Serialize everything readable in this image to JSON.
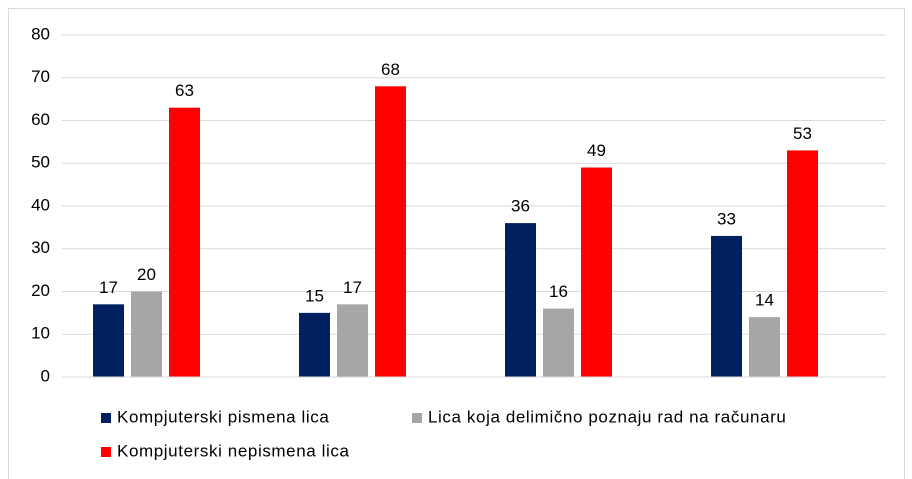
{
  "chart_data": {
    "type": "bar",
    "categories": [
      null,
      null,
      null,
      null
    ],
    "series": [
      {
        "name": "Kompjuterski pismena lica",
        "color": "#002060",
        "values": [
          17,
          15,
          36,
          33
        ]
      },
      {
        "name": "Lica koja delimično poznaju rad na računaru",
        "color": "#a6a6a6",
        "values": [
          20,
          17,
          16,
          14
        ]
      },
      {
        "name": "Kompjuterski nepismena lica",
        "color": "#ff0000",
        "values": [
          63,
          68,
          49,
          53
        ]
      }
    ],
    "ylim": [
      0,
      80
    ],
    "yticks": [
      0,
      10,
      20,
      30,
      40,
      50,
      60,
      70,
      80
    ],
    "grid": true,
    "legend": "bottom"
  }
}
